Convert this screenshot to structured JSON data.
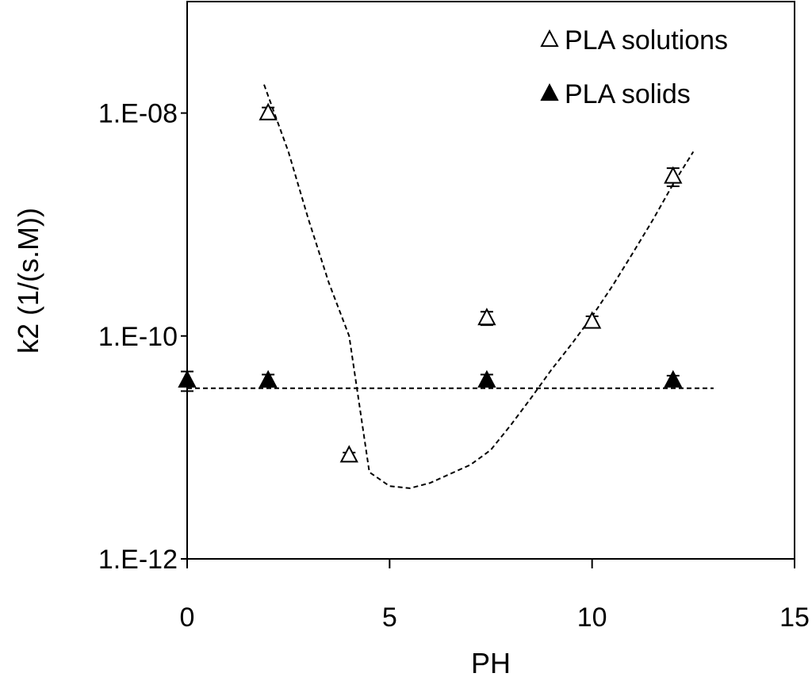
{
  "chart_data": {
    "type": "scatter",
    "title": "",
    "xlabel": "PH",
    "ylabel": "k2  (1/(s.M))",
    "xlim": [
      0,
      15
    ],
    "ylim": [
      1e-12,
      1e-07
    ],
    "y_scale": "log",
    "x_ticks": [
      0,
      5,
      10,
      15
    ],
    "x_tick_labels": [
      "0",
      "5",
      "10",
      "15"
    ],
    "y_ticks": [
      1e-12,
      1e-10,
      1e-08
    ],
    "y_tick_labels": [
      "1.E-12",
      "1.E-10",
      "1.E-08"
    ],
    "grid": false,
    "legend_position": "top-right",
    "series": [
      {
        "name": "PLA solutions",
        "marker": "open-triangle",
        "color": "#000000",
        "x": [
          2,
          4,
          7.4,
          10,
          12
        ],
        "y": [
          1e-08,
          8.5e-12,
          1.45e-10,
          1.35e-10,
          2.7e-09
        ],
        "y_err": [
          1.2e-09,
          5e-13,
          2e-11,
          1.5e-11,
          5e-10
        ],
        "trend": {
          "style": "dashed",
          "x": [
            1.9,
            2.5,
            3.0,
            3.5,
            4.0,
            4.5,
            5.0,
            5.5,
            6.0,
            6.5,
            7.0,
            7.5,
            8.0,
            8.5,
            9.0,
            9.5,
            10.0,
            10.5,
            11.0,
            11.5,
            12.0,
            12.5
          ],
          "y": [
            1.8e-08,
            4.5e-09,
            1.1e-09,
            3e-10,
            1e-10,
            6e-12,
            4.5e-12,
            4.3e-12,
            4.8e-12,
            5.8e-12,
            7e-12,
            9.5e-12,
            1.6e-11,
            2.8e-11,
            5e-11,
            8.5e-11,
            1.5e-10,
            2.8e-10,
            5.5e-10,
            1.1e-09,
            2.3e-09,
            4.5e-09
          ]
        }
      },
      {
        "name": "PLA solids",
        "marker": "filled-triangle",
        "color": "#000000",
        "x": [
          0,
          2,
          7.4,
          12
        ],
        "y": [
          4e-11,
          4e-11,
          4e-11,
          4e-11
        ],
        "y_err": [
          8e-12,
          5e-12,
          5e-12,
          4e-12
        ],
        "trend": {
          "style": "dashed",
          "x": [
            0,
            13
          ],
          "y": [
            3.4e-11,
            3.4e-11
          ]
        }
      }
    ]
  }
}
